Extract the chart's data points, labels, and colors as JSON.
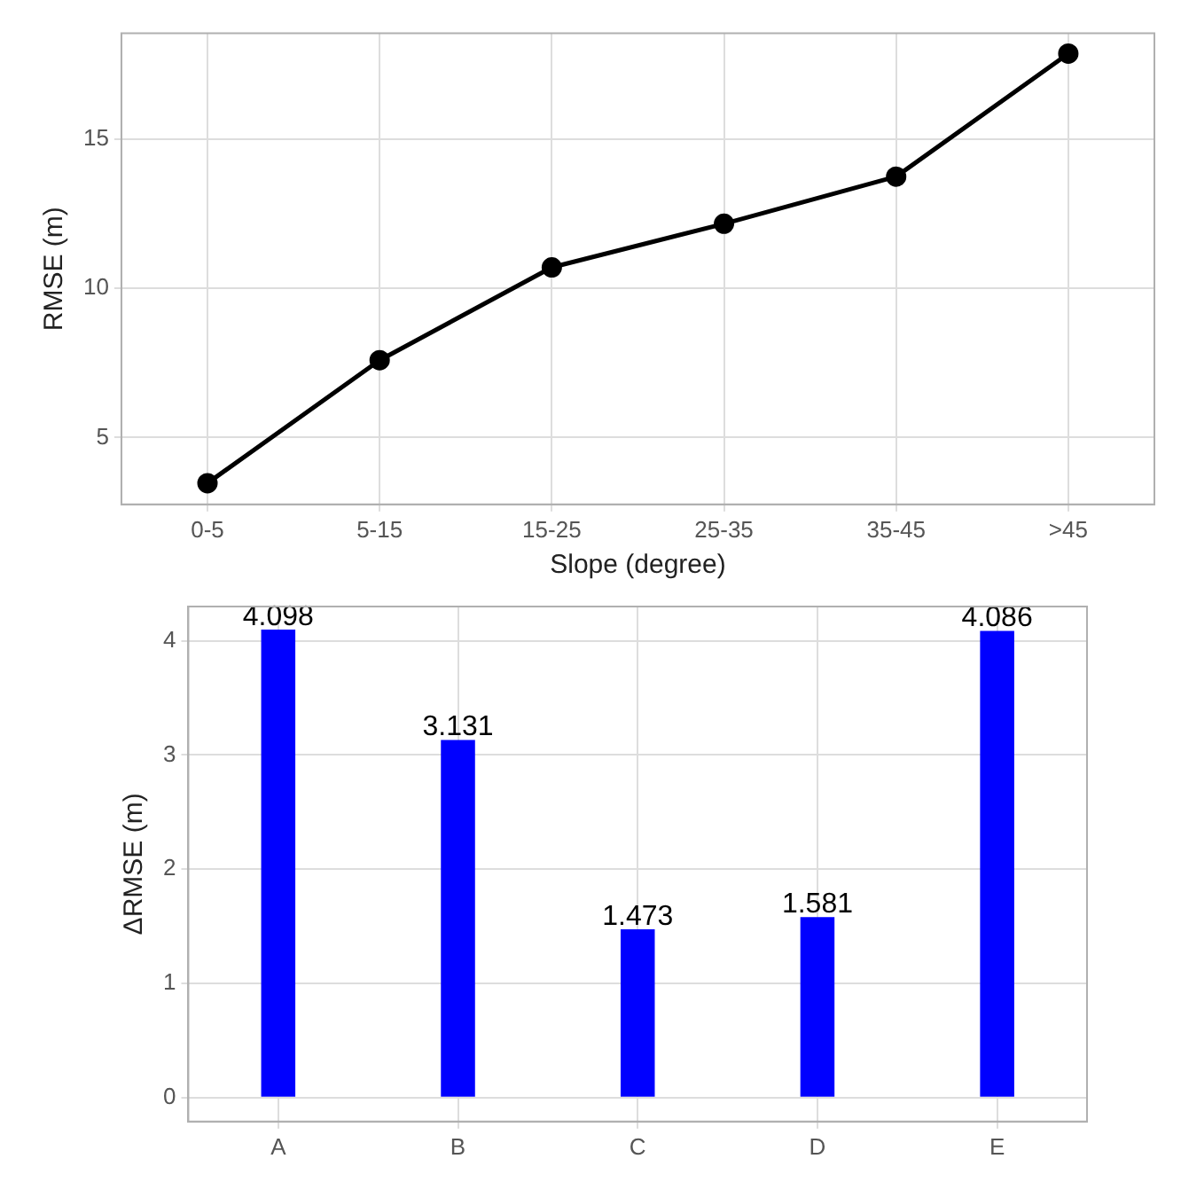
{
  "chart_data": [
    {
      "type": "line",
      "xlabel": "Slope (degree)",
      "ylabel": "RMSE (m)",
      "categories": [
        "0-5",
        "5-15",
        "15-25",
        "25-35",
        "35-45",
        ">45"
      ],
      "series": [
        {
          "color": "#000000",
          "values": [
            3.47,
            7.59,
            10.7,
            12.16,
            13.74,
            17.86
          ]
        }
      ],
      "ylim": [
        2.76,
        18.54
      ],
      "yticks": [
        5,
        10,
        15
      ],
      "grid": true,
      "marker": "circle",
      "line_style": "solid"
    },
    {
      "type": "bar",
      "ylabel": "ΔRMSE (m)",
      "categories": [
        "A",
        "B",
        "C",
        "D",
        "E"
      ],
      "series": [
        {
          "color": "#0000ff",
          "values": [
            4.098,
            3.131,
            1.473,
            1.581,
            4.086
          ]
        }
      ],
      "ylim": [
        -0.21,
        4.3
      ],
      "yticks": [
        0,
        1,
        2,
        3,
        4
      ],
      "grid": true,
      "data_labels": true
    }
  ]
}
